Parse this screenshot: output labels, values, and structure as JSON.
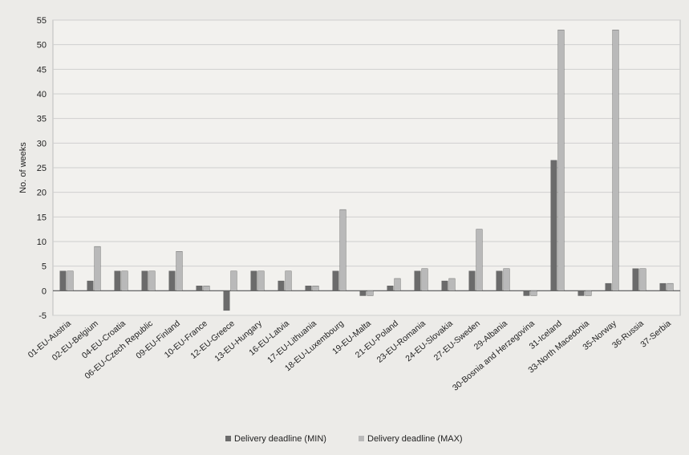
{
  "chart_data": {
    "type": "bar",
    "title": "",
    "xlabel": "",
    "ylabel": "No. of weeks",
    "ylim": [
      -5,
      55
    ],
    "yticks": [
      -5,
      0,
      5,
      10,
      15,
      20,
      25,
      30,
      35,
      40,
      45,
      50,
      55
    ],
    "grid": true,
    "legend_position": "bottom",
    "categories": [
      "01-EU-Austria",
      "02-EU-Belgium",
      "04-EU-Croatia",
      "06-EU-Czech Republic",
      "09-EU-Finland",
      "10-EU-France",
      "12-EU-Greece",
      "13-EU-Hungary",
      "16-EU-Latvia",
      "17-EU-Lithuania",
      "18-EU-Luxembourg",
      "19-EU-Malta",
      "21-EU-Poland",
      "23-EU-Romania",
      "24-EU-Slovakia",
      "27-EU-Sweden",
      "29-Albania",
      "30-Bosnia and Herzegovina",
      "31-Iceland",
      "33-North Macedonia",
      "35-Norway",
      "36-Russia",
      "37-Serbia"
    ],
    "series": [
      {
        "name": "Delivery deadline (MIN)",
        "color": "#6b6b6b",
        "values": [
          4,
          2,
          4,
          4,
          4,
          1,
          -4,
          4,
          2,
          1,
          4,
          -1,
          1,
          4,
          2,
          4,
          4,
          -1,
          26.5,
          -1,
          1.5,
          4.5,
          1.5
        ]
      },
      {
        "name": "Delivery deadline (MAX)",
        "color": "#b9b9b9",
        "values": [
          4,
          9,
          4,
          4,
          8,
          1,
          4,
          4,
          4,
          1,
          16.5,
          -1,
          2.5,
          4.5,
          2.5,
          12.5,
          4.5,
          -1,
          53,
          -1,
          53,
          4.5,
          1.5
        ]
      }
    ]
  }
}
